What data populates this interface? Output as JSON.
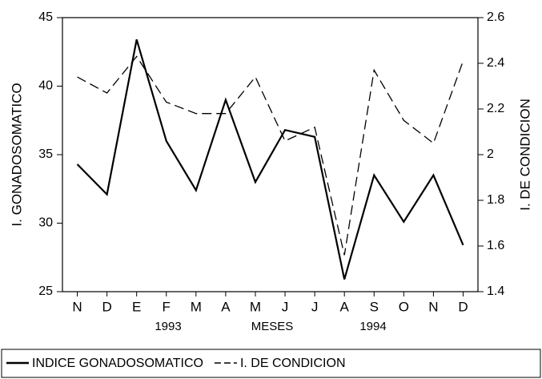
{
  "chart_data": {
    "type": "line",
    "categories": [
      "N",
      "D",
      "E",
      "F",
      "M",
      "A",
      "M",
      "J",
      "J",
      "A",
      "S",
      "O",
      "N",
      "D"
    ],
    "series": [
      {
        "name": "INDICE GONADOSOMATICO",
        "color": "#000000",
        "style": "solid",
        "axis": "y",
        "values": [
          34.3,
          32.1,
          43.4,
          36,
          32.4,
          39,
          33,
          36.8,
          36.3,
          25.9,
          33.5,
          30.1,
          33.5,
          28.4
        ]
      },
      {
        "name": "I. DE CONDICION",
        "color": "#000000",
        "style": "dashed",
        "axis": "y2",
        "values": [
          2.34,
          2.27,
          2.43,
          2.23,
          2.18,
          2.18,
          2.34,
          2.06,
          2.12,
          1.56,
          2.37,
          2.15,
          2.05,
          2.41
        ]
      }
    ],
    "ylabel": "I. GONADOSOMATICO",
    "y2label": "I. DE CONDICION",
    "xlabel": "MESES",
    "annotations": [
      "1993",
      "1994"
    ],
    "ylim": [
      25,
      45
    ],
    "yticks": [
      25,
      30,
      35,
      40,
      45
    ],
    "y2lim": [
      1.4,
      2.6
    ],
    "y2ticks": [
      1.4,
      1.6,
      1.8,
      2,
      2.2,
      2.4,
      2.6
    ],
    "grid": false
  }
}
